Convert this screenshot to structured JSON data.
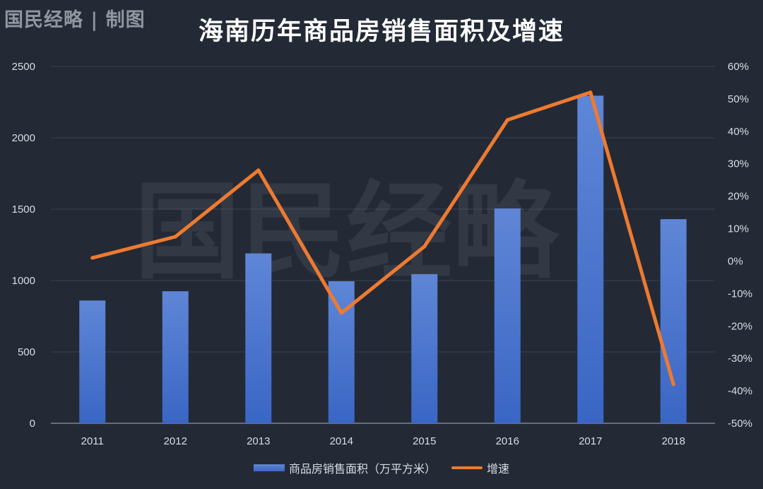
{
  "header": {
    "brand": "国民经略 | 制图",
    "title": "海南历年商品房销售面积及增速"
  },
  "watermark": "国民经略",
  "colors": {
    "background": "#232a36",
    "bar_top": "#5f86d6",
    "bar_bottom": "#3a66c4",
    "line": "#ee7a30",
    "grid": "#3a4250",
    "text": "#d9dde3"
  },
  "chart_data": {
    "type": "bar",
    "title": "海南历年商品房销售面积及增速",
    "categories": [
      "2011",
      "2012",
      "2013",
      "2014",
      "2015",
      "2016",
      "2017",
      "2018"
    ],
    "series": [
      {
        "name": "商品房销售面积（万平方米）",
        "type": "bar",
        "axis": "left",
        "values": [
          860,
          925,
          1190,
          995,
          1045,
          1505,
          2295,
          1430
        ]
      },
      {
        "name": "增速",
        "type": "line",
        "axis": "right",
        "values": [
          0.01,
          0.075,
          0.28,
          -0.16,
          0.045,
          0.435,
          0.52,
          -0.38
        ]
      }
    ],
    "y_left": {
      "min": 0,
      "max": 2500,
      "ticks": [
        "0",
        "500",
        "1000",
        "1500",
        "2000",
        "2500"
      ]
    },
    "y_right": {
      "min": -0.5,
      "max": 0.6,
      "ticks": [
        "-50%",
        "-40%",
        "-30%",
        "-20%",
        "-10%",
        "0%",
        "10%",
        "20%",
        "30%",
        "40%",
        "50%",
        "60%"
      ]
    },
    "grid": true,
    "legend_position": "bottom"
  }
}
